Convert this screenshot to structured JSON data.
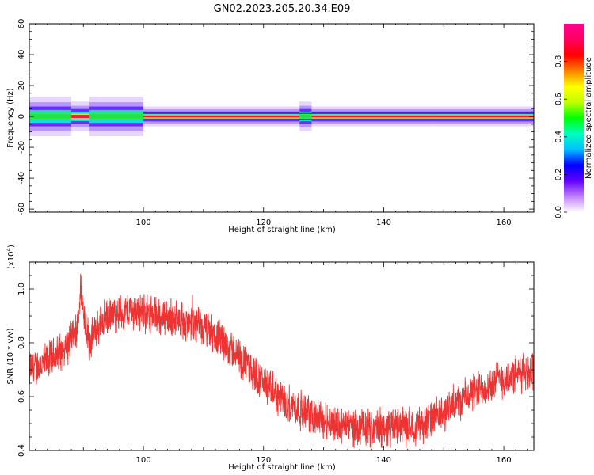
{
  "title": "GN02.2023.205.20.34.E09",
  "chart_data": [
    {
      "type": "heatmap",
      "xlabel": "Height of straight line (km)",
      "ylabel": "Frequency (Hz)",
      "xlim": [
        81,
        165
      ],
      "ylim": [
        -62,
        60
      ],
      "xticks": [
        100,
        120,
        140,
        160
      ],
      "yticks": [
        -60,
        -40,
        -20,
        0,
        20,
        40,
        60
      ],
      "grid": false,
      "band": {
        "center_hz": 0,
        "segments": [
          {
            "x": [
              81,
              88
            ],
            "core": "green",
            "halfwidth_hz": 4
          },
          {
            "x": [
              88,
              91
            ],
            "core": "red",
            "halfwidth_hz": 3
          },
          {
            "x": [
              91,
              100
            ],
            "core": "green",
            "halfwidth_hz": 4
          },
          {
            "x": [
              100,
              126
            ],
            "core": "red",
            "halfwidth_hz": 2
          },
          {
            "x": [
              126,
              128
            ],
            "core": "green",
            "halfwidth_hz": 3
          },
          {
            "x": [
              128,
              148
            ],
            "core": "red",
            "halfwidth_hz": 2
          },
          {
            "x": [
              148,
              165
            ],
            "core": "red",
            "halfwidth_hz": 2
          }
        ],
        "boundary_lines_hz": [
          -2,
          2
        ]
      },
      "colorbar": {
        "label": "Normalized spectral amplitude",
        "range": [
          0,
          1
        ],
        "ticks": [
          "0.0",
          "0.2",
          "0.4",
          "0.6",
          "0.8"
        ],
        "colors": [
          "#ffffff",
          "#c080ff",
          "#6000ff",
          "#0000ff",
          "#00c0ff",
          "#00ffc0",
          "#00ff00",
          "#c0ff00",
          "#ffff00",
          "#ff8000",
          "#ff0000",
          "#ff0060",
          "#ff0090"
        ]
      }
    },
    {
      "type": "line",
      "xlabel": "Height of straight line (km)",
      "ylabel": "SNR (10 * v/v)",
      "y_multiplier": "(x10",
      "y_multiplier_exp": "4",
      "y_multiplier_close": ")",
      "xlim": [
        81,
        165
      ],
      "ylim": [
        0.4,
        1.1
      ],
      "xticks": [
        100,
        120,
        140,
        160
      ],
      "yticks": [
        "0.4",
        "0.6",
        "0.8",
        "1.0"
      ],
      "color": "#ee3333",
      "grid": false,
      "x": [
        81,
        84,
        87,
        89,
        89.6,
        90,
        91,
        93,
        96,
        99,
        102,
        105,
        108,
        111,
        114,
        117,
        120,
        123,
        126,
        129,
        132,
        135,
        138,
        141,
        144,
        147,
        150,
        153,
        156,
        159,
        162,
        165
      ],
      "y": [
        0.7,
        0.73,
        0.78,
        0.84,
        1.02,
        0.92,
        0.8,
        0.88,
        0.91,
        0.92,
        0.9,
        0.89,
        0.87,
        0.84,
        0.79,
        0.72,
        0.65,
        0.59,
        0.55,
        0.52,
        0.5,
        0.49,
        0.48,
        0.49,
        0.49,
        0.5,
        0.54,
        0.59,
        0.63,
        0.66,
        0.68,
        0.7
      ],
      "noise_amplitude": 0.06
    }
  ]
}
